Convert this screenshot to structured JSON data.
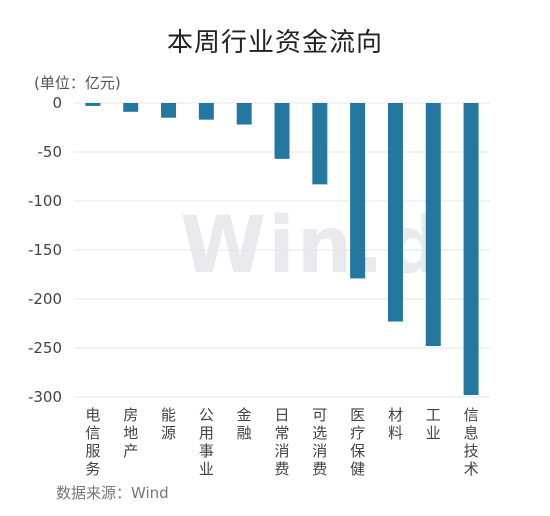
{
  "chart_data": {
    "type": "bar",
    "title": "本周行业资金流向",
    "unit_label": "(单位：亿元)",
    "source": "数据来源：Wind",
    "watermark": "Win.d",
    "categories": [
      "电信服务",
      "房地产",
      "能源",
      "公用事业",
      "金融",
      "日常消费",
      "可选消费",
      "医疗保健",
      "材料",
      "工业",
      "信息技术"
    ],
    "values": [
      -3,
      -9,
      -15,
      -17,
      -22,
      -57,
      -83,
      -179,
      -223,
      -248,
      -298
    ],
    "ylim": [
      -300,
      0
    ],
    "yticks": [
      0,
      -50,
      -100,
      -150,
      -200,
      -250,
      -300
    ],
    "bar_color": "#2478a0",
    "grid": true
  }
}
